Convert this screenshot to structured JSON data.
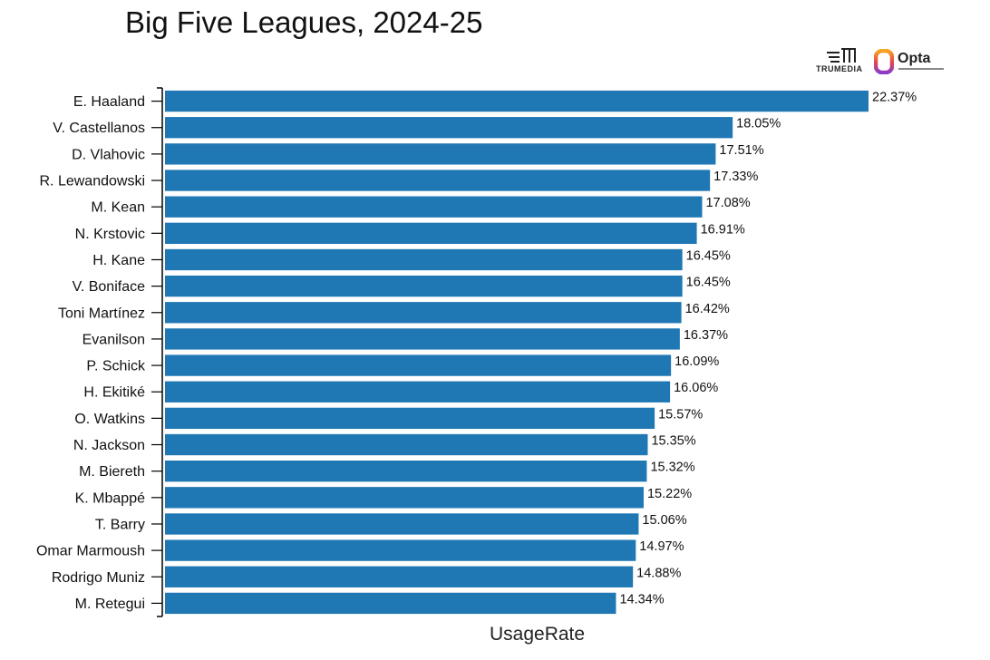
{
  "title": "Big Five Leagues, 2024-25",
  "logos": {
    "trumedia_text": "TRUMEDIA",
    "opta_text": "Opta"
  },
  "colors": {
    "bar": "#1f77b4",
    "axis": "#000000",
    "text": "#111111"
  },
  "chart_data": {
    "type": "bar",
    "orientation": "horizontal",
    "title": "Big Five Leagues, 2024-25",
    "xlabel": "UsageRate",
    "ylabel": "",
    "categories": [
      "E. Haaland",
      "V. Castellanos",
      "D. Vlahovic",
      "R. Lewandowski",
      "M. Kean",
      "N. Krstovic",
      "H. Kane",
      "V. Boniface",
      "Toni Martínez",
      "Evanilson",
      "P. Schick",
      "H. Ekitiké",
      "O. Watkins",
      "N. Jackson",
      "M. Biereth",
      "K. Mbappé",
      "T. Barry",
      "Omar Marmoush",
      "Rodrigo Muniz",
      "M. Retegui"
    ],
    "values": [
      22.37,
      18.05,
      17.51,
      17.33,
      17.08,
      16.91,
      16.45,
      16.45,
      16.42,
      16.37,
      16.09,
      16.06,
      15.57,
      15.35,
      15.32,
      15.22,
      15.06,
      14.97,
      14.88,
      14.34
    ],
    "labels": [
      "22.37%",
      "18.05%",
      "17.51%",
      "17.33%",
      "17.08%",
      "16.91%",
      "16.45%",
      "16.45%",
      "16.42%",
      "16.37%",
      "16.09%",
      "16.06%",
      "15.57%",
      "15.35%",
      "15.32%",
      "15.22%",
      "15.06%",
      "14.97%",
      "14.88%",
      "14.34%"
    ],
    "xlim": [
      0,
      22.37
    ],
    "grid": false,
    "legend": "none"
  }
}
